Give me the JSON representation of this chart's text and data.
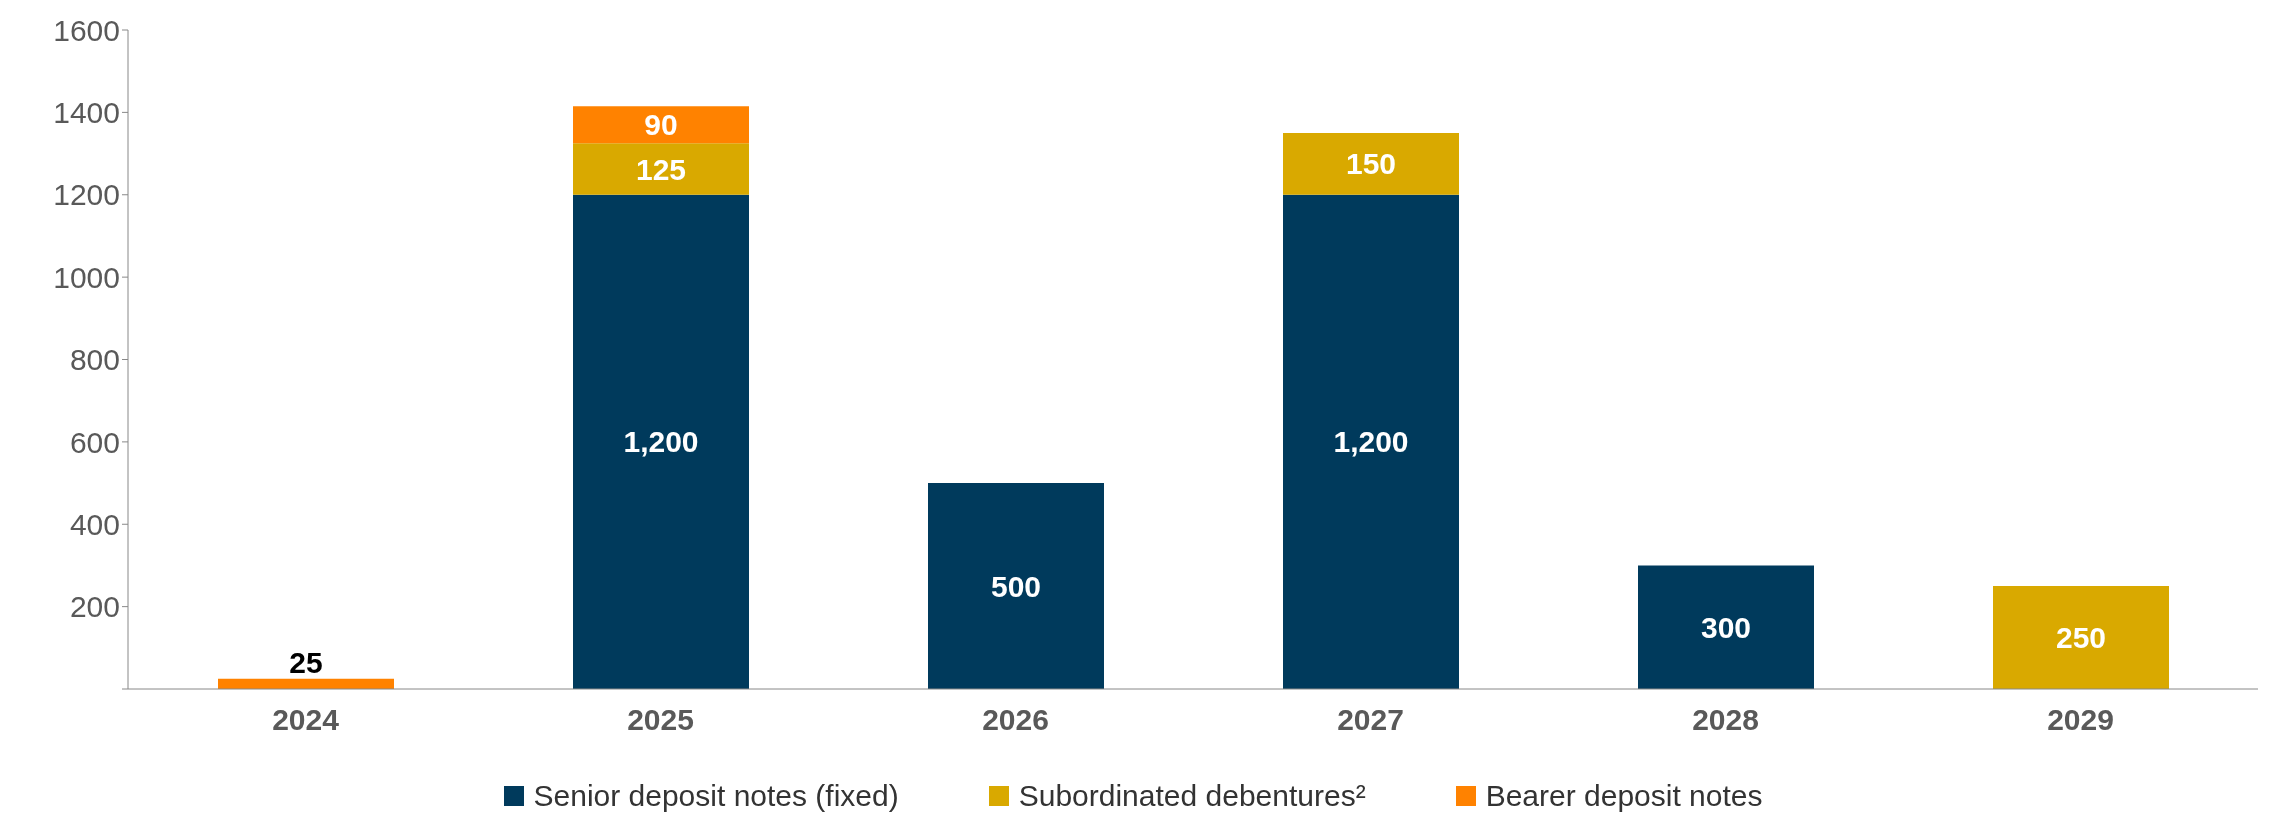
{
  "chart_data": {
    "type": "bar",
    "stacked": true,
    "categories": [
      "2024",
      "2025",
      "2026",
      "2027",
      "2028",
      "2029"
    ],
    "series": [
      {
        "name": "Senior deposit notes (fixed)",
        "color": "#003a5c",
        "values": [
          null,
          1200,
          500,
          1200,
          300,
          null
        ],
        "value_labels": [
          null,
          "1,200",
          "500",
          "1,200",
          "300",
          null
        ]
      },
      {
        "name": "Subordinated debentures²",
        "color": "#d9a900",
        "values": [
          null,
          125,
          null,
          150,
          null,
          250
        ],
        "value_labels": [
          null,
          "125",
          null,
          "150",
          null,
          "250"
        ]
      },
      {
        "name": "Bearer deposit notes",
        "color": "#ff8200",
        "values": [
          25,
          90,
          null,
          null,
          null,
          null
        ],
        "value_labels": [
          "25",
          "90",
          null,
          null,
          null,
          null
        ]
      }
    ],
    "ylim": [
      0,
      1600
    ],
    "yticks": [
      {
        "value": 0,
        "label": null
      },
      200,
      400,
      600,
      800,
      1000,
      1200,
      1400,
      1600
    ],
    "legend": "bottom"
  }
}
